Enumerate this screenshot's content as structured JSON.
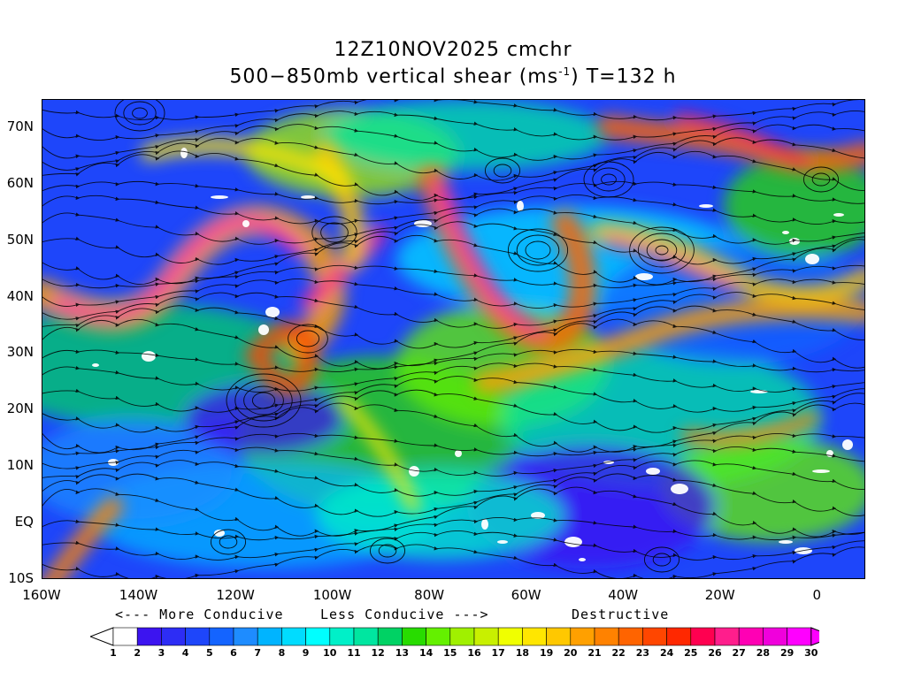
{
  "title": {
    "line1": "12Z10NOV2025 cmchr",
    "line2_prefix": "500−850mb vertical shear (ms",
    "line2_sup": "-1",
    "line2_suffix": ") T=132 h"
  },
  "axes": {
    "y_labels": [
      "70N",
      "60N",
      "50N",
      "40N",
      "30N",
      "20N",
      "10N",
      "EQ",
      "10S"
    ],
    "x_labels": [
      "160W",
      "140W",
      "120W",
      "100W",
      "80W",
      "60W",
      "40W",
      "20W",
      "0"
    ],
    "lat_range": [
      -10,
      75
    ],
    "lon_range": [
      -160,
      10
    ]
  },
  "legend": {
    "more": "<--- More Conducive",
    "less": "Less Conducive --->",
    "destructive": "Destructive",
    "colorbar_labels": [
      "1",
      "2",
      "3",
      "4",
      "5",
      "6",
      "7",
      "8",
      "9",
      "10",
      "11",
      "12",
      "13",
      "14",
      "15",
      "16",
      "17",
      "18",
      "19",
      "20",
      "21",
      "22",
      "23",
      "24",
      "25",
      "26",
      "27",
      "28",
      "29",
      "30"
    ],
    "colors": [
      "#ffffff",
      "#3c14f0",
      "#2d2df5",
      "#1e46fa",
      "#1464ff",
      "#1e8cff",
      "#00b4ff",
      "#00dcff",
      "#00ffff",
      "#00f0c8",
      "#00e6a0",
      "#00d264",
      "#28dc00",
      "#64f000",
      "#a0f000",
      "#c8f000",
      "#f0ff00",
      "#ffe600",
      "#ffc800",
      "#ffa000",
      "#ff8200",
      "#ff6400",
      "#ff4600",
      "#ff2800",
      "#ff0050",
      "#ff1e8c",
      "#ff00b4",
      "#f000dc",
      "#ff00ff"
    ]
  }
}
